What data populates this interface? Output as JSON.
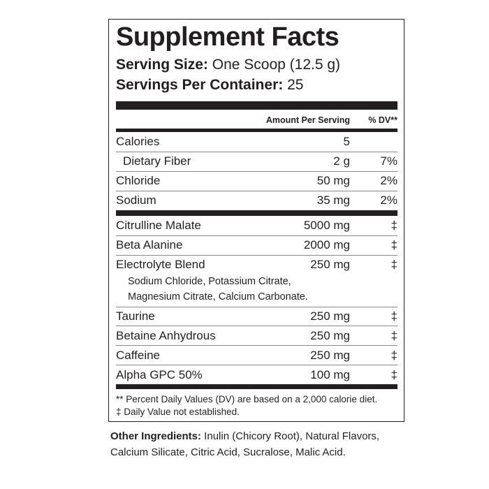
{
  "title": "Supplement Facts",
  "serving_size": {
    "label": "Serving Size:",
    "value": "One Scoop (12.5 g)"
  },
  "servings_per_container": {
    "label": "Servings Per Container:",
    "value": "25"
  },
  "header": {
    "amount": "Amount Per Serving",
    "dv": "% DV**"
  },
  "nutrients": [
    {
      "name": "Calories",
      "amount": "5",
      "dv": ""
    },
    {
      "name": "Dietary Fiber",
      "amount": "2 g",
      "dv": "7%"
    },
    {
      "name": "Chloride",
      "amount": "50 mg",
      "dv": "2%"
    },
    {
      "name": "Sodium",
      "amount": "35 mg",
      "dv": "2%"
    }
  ],
  "ingredients": [
    {
      "name": "Citrulline Malate",
      "amount": "5000 mg",
      "dv": "‡"
    },
    {
      "name": "Beta Alanine",
      "amount": "2000 mg",
      "dv": "‡"
    },
    {
      "name": "Electrolyte Blend",
      "amount": "250 mg",
      "dv": "‡",
      "sub": [
        "Sodium Chloride, Potassium Citrate,",
        "Magnesium Citrate, Calcium Carbonate."
      ]
    },
    {
      "name": "Taurine",
      "amount": "250 mg",
      "dv": "‡"
    },
    {
      "name": "Betaine Anhydrous",
      "amount": "250 mg",
      "dv": "‡"
    },
    {
      "name": "Caffeine",
      "amount": "250 mg",
      "dv": "‡"
    },
    {
      "name": "Alpha GPC 50%",
      "amount": "100 mg",
      "dv": "‡"
    }
  ],
  "footnotes": [
    "** Percent Daily Values (DV) are based on a 2,000 calorie diet.",
    "‡ Daily Value not established."
  ],
  "other_ingredients": {
    "label": "Other Ingredients:",
    "line1": " Inulin (Chicory Root), Natural Flavors,",
    "line2": "Calcium Silicate, Citric Acid, Sucralose, Malic Acid."
  }
}
